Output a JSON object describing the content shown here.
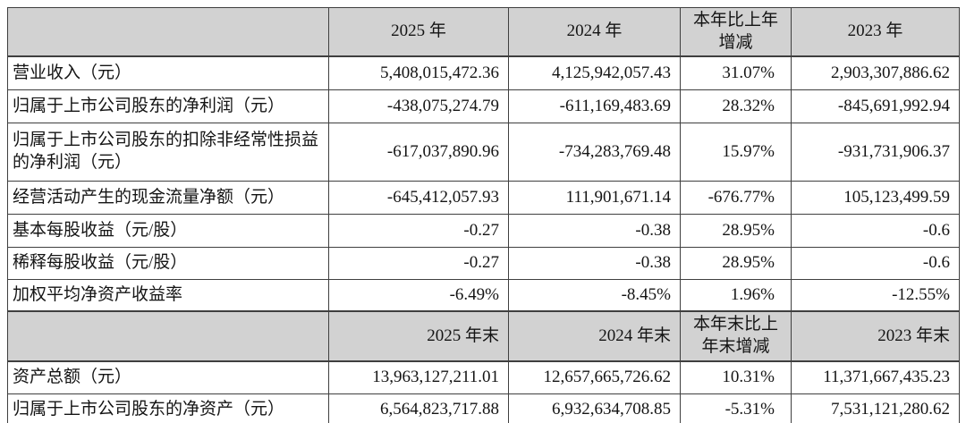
{
  "table": {
    "period_header": {
      "col_2025": "2025 年",
      "col_2024": "2024 年",
      "col_yoy_line1": "本年比上年",
      "col_yoy_line2": "增减",
      "col_2023": "2023 年"
    },
    "annual_rows": [
      {
        "label": "营业收入（元）",
        "v2025": "5,408,015,472.36",
        "v2024": "4,125,942,057.43",
        "yoy": "31.07%",
        "v2023": "2,903,307,886.62"
      },
      {
        "label": "归属于上市公司股东的净利润（元）",
        "v2025": "-438,075,274.79",
        "v2024": "-611,169,483.69",
        "yoy": "28.32%",
        "v2023": "-845,691,992.94"
      },
      {
        "label": "归属于上市公司股东的扣除非经常性损益的净利润（元）",
        "v2025": "-617,037,890.96",
        "v2024": "-734,283,769.48",
        "yoy": "15.97%",
        "v2023": "-931,731,906.37"
      },
      {
        "label": "经营活动产生的现金流量净额（元）",
        "v2025": "-645,412,057.93",
        "v2024": "111,901,671.14",
        "yoy": "-676.77%",
        "v2023": "105,123,499.59"
      },
      {
        "label": "基本每股收益（元/股）",
        "v2025": "-0.27",
        "v2024": "-0.38",
        "yoy": "28.95%",
        "v2023": "-0.6"
      },
      {
        "label": "稀释每股收益（元/股）",
        "v2025": "-0.27",
        "v2024": "-0.38",
        "yoy": "28.95%",
        "v2023": "-0.6"
      },
      {
        "label": "加权平均净资产收益率",
        "v2025": "-6.49%",
        "v2024": "-8.45%",
        "yoy": "1.96%",
        "v2023": "-12.55%"
      }
    ],
    "eoy_header": {
      "col_2025": "2025 年末",
      "col_2024": "2024 年末",
      "col_yoy_line1": "本年末比上",
      "col_yoy_line2": "年末增减",
      "col_2023": "2023 年末"
    },
    "eoy_rows": [
      {
        "label": "资产总额（元）",
        "v2025": "13,963,127,211.01",
        "v2024": "12,657,665,726.62",
        "yoy": "10.31%",
        "v2023": "11,371,667,435.23"
      },
      {
        "label": "归属于上市公司股东的净资产（元）",
        "v2025": "6,564,823,717.88",
        "v2024": "6,932,634,708.85",
        "yoy": "-5.31%",
        "v2023": "7,531,121,280.62"
      }
    ],
    "colors": {
      "header_bg": "#d2d2d2",
      "border": "#3f3f3f",
      "text": "#141414",
      "cell_bg": "#ffffff"
    }
  }
}
